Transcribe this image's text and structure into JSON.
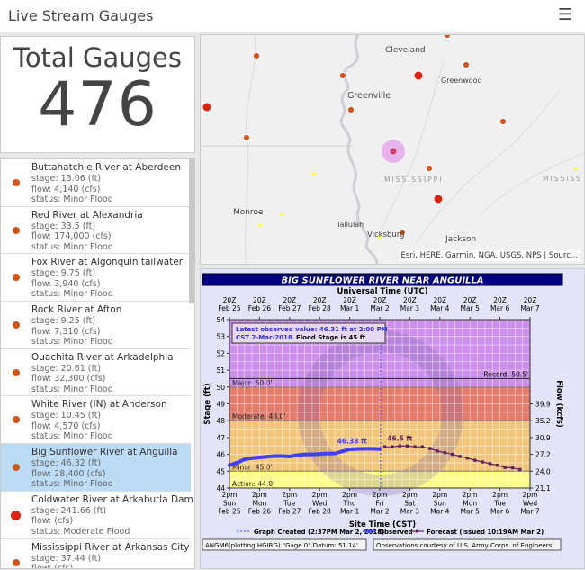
{
  "header": {
    "title": "Live Stream Gauges",
    "menu_icon": "hamburger-icon"
  },
  "summary": {
    "label": "Total Gauges",
    "count": "476"
  },
  "gauges": [
    {
      "name": "Buttahatchie River at Aberdeen",
      "stage": "stage: 13.06 (ft)",
      "flow": "flow: 4,140 (cfs)",
      "status": "status: Minor Flood",
      "level": "minor"
    },
    {
      "name": "Red River at Alexandria",
      "stage": "stage: 33.5 (ft)",
      "flow": "flow: 174,000 (cfs)",
      "status": "status: Minor Flood",
      "level": "minor"
    },
    {
      "name": "Fox River at Algonquin tailwater",
      "stage": "stage: 9.75 (ft)",
      "flow": "flow: 3,940 (cfs)",
      "status": "status: Minor Flood",
      "level": "minor"
    },
    {
      "name": "Rock River at Afton",
      "stage": "stage: 9.25 (ft)",
      "flow": "flow: 7,310 (cfs)",
      "status": "status: Minor Flood",
      "level": "minor"
    },
    {
      "name": "Ouachita River at Arkadelphia",
      "stage": "stage: 20.61 (ft)",
      "flow": "flow: 32,300 (cfs)",
      "status": "status: Minor Flood",
      "level": "minor"
    },
    {
      "name": "White River (IN) at Anderson",
      "stage": "stage: 10.45 (ft)",
      "flow": "flow: 4,570 (cfs)",
      "status": "status: Minor Flood",
      "level": "minor"
    },
    {
      "name": "Big Sunflower River at Anguilla",
      "stage": "stage: 46.32 (ft)",
      "flow": "flow: 28,400 (cfs)",
      "status": "status: Minor Flood",
      "level": "minor",
      "selected": true
    },
    {
      "name": "Coldwater River at Arkabutla Dam",
      "stage": "stage: 241.66 (ft)",
      "flow": "flow: (cfs)",
      "status": "status: Moderate Flood",
      "level": "moderate"
    },
    {
      "name": "Mississippi River at Arkansas City",
      "stage": "stage: 37.44 (ft)",
      "flow": "flow: (cfs)",
      "status": "",
      "level": "minor"
    }
  ],
  "map": {
    "places": [
      "Cleveland",
      "Greenwood",
      "Greenville",
      "MISSISSIPPI",
      "MISSISS",
      "Monroe",
      "Tallulah",
      "Vicksburg",
      "Jackson"
    ],
    "attribution": "Esri, HERE, Garmin, NGA, USGS, NPS | Sourc...",
    "colors": {
      "minor": "#d4541a",
      "moderate": "#e02010",
      "action": "#ffff30",
      "selected_halo": "#e8b4ee"
    }
  },
  "chart_data": {
    "type": "line",
    "title": "BIG SUNFLOWER RIVER NEAR ANGUILLA",
    "top_axis_title": "Universal Time (UTC)",
    "xlabel": "Site Time (CST)",
    "ylabel": "Stage (ft)",
    "y2label": "Flow (kcfs)",
    "ylim": [
      44,
      54
    ],
    "yticks": [
      "44",
      "45",
      "46",
      "47",
      "48",
      "49",
      "50",
      "51",
      "52",
      "53",
      "54"
    ],
    "y2ticks": [
      {
        "stage": 44,
        "label": "21.1"
      },
      {
        "stage": 45,
        "label": "24.0"
      },
      {
        "stage": 46,
        "label": "27.2"
      },
      {
        "stage": 47,
        "label": "30.9"
      },
      {
        "stage": 48,
        "label": "35.2"
      },
      {
        "stage": 49,
        "label": "39.9"
      }
    ],
    "xticks_top": [
      [
        "20Z",
        "Feb 25"
      ],
      [
        "20Z",
        "Feb 26"
      ],
      [
        "20Z",
        "Feb 27"
      ],
      [
        "20Z",
        "Feb 28"
      ],
      [
        "20Z",
        "Mar 1"
      ],
      [
        "20Z",
        "Mar 2"
      ],
      [
        "20Z",
        "Mar 3"
      ],
      [
        "20Z",
        "Mar 4"
      ],
      [
        "20Z",
        "Mar 5"
      ],
      [
        "20Z",
        "Mar 6"
      ],
      [
        "20Z",
        "Mar 7"
      ]
    ],
    "xticks_bottom": [
      [
        "2pm",
        "Sun",
        "Feb 25"
      ],
      [
        "2pm",
        "Mon",
        "Feb 26"
      ],
      [
        "2pm",
        "Tue",
        "Feb 27"
      ],
      [
        "2pm",
        "Wed",
        "Feb 28"
      ],
      [
        "2pm",
        "Thu",
        "Mar 1"
      ],
      [
        "2pm",
        "Fri",
        "Mar 2"
      ],
      [
        "2pm",
        "Sat",
        "Mar 3"
      ],
      [
        "2pm",
        "Sun",
        "Mar 4"
      ],
      [
        "2pm",
        "Mon",
        "Mar 5"
      ],
      [
        "2pm",
        "Tue",
        "Mar 6"
      ],
      [
        "2pm",
        "Wed",
        "Mar 7"
      ]
    ],
    "bands": [
      {
        "label": "Action: 44.0'",
        "from": 44,
        "to": 45,
        "color": "#ffff88"
      },
      {
        "label": "Minor: 45.0'",
        "from": 45,
        "to": 48,
        "color": "#f2c67a"
      },
      {
        "label": "Moderate: 48.0'",
        "from": 48,
        "to": 50,
        "color": "#e47c6c"
      },
      {
        "label": "Major: 50.0'",
        "from": 50,
        "to": 54,
        "color": "#cc90ec"
      }
    ],
    "record": {
      "label": "Record: 50.5'",
      "value": 50.5
    },
    "latest_box": {
      "line1": "Latest observed value: 46.31 ft at 2:00 PM",
      "line2": "CST 2-Mar-2018.",
      "line2b": "Flood Stage is 45 ft"
    },
    "graph_created": "2018-03-02T14:37",
    "series": [
      {
        "name": "Observed",
        "color": "#4040f0",
        "peak_label": "46.33 ft",
        "x": [
          "2018-02-25T14:00",
          "2018-02-25T20:00",
          "2018-02-26T02:00",
          "2018-02-26T08:00",
          "2018-02-26T14:00",
          "2018-02-26T20:00",
          "2018-02-27T02:00",
          "2018-02-27T08:00",
          "2018-02-27T14:00",
          "2018-02-27T20:00",
          "2018-02-28T02:00",
          "2018-02-28T08:00",
          "2018-02-28T14:00",
          "2018-02-28T20:00",
          "2018-03-01T02:00",
          "2018-03-01T08:00",
          "2018-03-01T14:00",
          "2018-03-01T20:00",
          "2018-03-02T02:00",
          "2018-03-02T08:00",
          "2018-03-02T14:00"
        ],
        "y": [
          45.35,
          45.5,
          45.7,
          45.78,
          45.82,
          45.86,
          45.9,
          45.9,
          45.88,
          45.95,
          46.0,
          46.0,
          46.02,
          46.05,
          46.05,
          46.18,
          46.3,
          46.32,
          46.33,
          46.33,
          46.31
        ]
      },
      {
        "name": "Forecast (issued 10:19AM Mar 2)",
        "color": "#602060",
        "peak_label": "46.5 ft",
        "x": [
          "2018-03-02T18:00",
          "2018-03-03T00:00",
          "2018-03-03T06:00",
          "2018-03-03T12:00",
          "2018-03-03T18:00",
          "2018-03-04T00:00",
          "2018-03-04T06:00",
          "2018-03-04T12:00",
          "2018-03-04T18:00",
          "2018-03-05T00:00",
          "2018-03-05T06:00",
          "2018-03-05T12:00",
          "2018-03-05T18:00",
          "2018-03-06T00:00",
          "2018-03-06T06:00",
          "2018-03-06T12:00",
          "2018-03-06T18:00",
          "2018-03-07T00:00",
          "2018-03-07T06:00"
        ],
        "y": [
          46.45,
          46.45,
          46.5,
          46.5,
          46.45,
          46.45,
          46.35,
          46.2,
          46.1,
          46.0,
          45.88,
          45.78,
          45.65,
          45.55,
          45.45,
          45.35,
          45.22,
          45.2,
          45.1
        ]
      }
    ],
    "legend": {
      "created": "Graph Created (2:37PM Mar 2, 2018)",
      "observed": "Observed",
      "forecast": "Forecast (issued 10:19AM Mar 2)"
    },
    "footer_left": "ANGM6(plotting HGIRG) \"Gage 0\" Datum: 51.14'",
    "footer_right": "Observations courtesy of U.S. Army Corps. of Engineers"
  }
}
